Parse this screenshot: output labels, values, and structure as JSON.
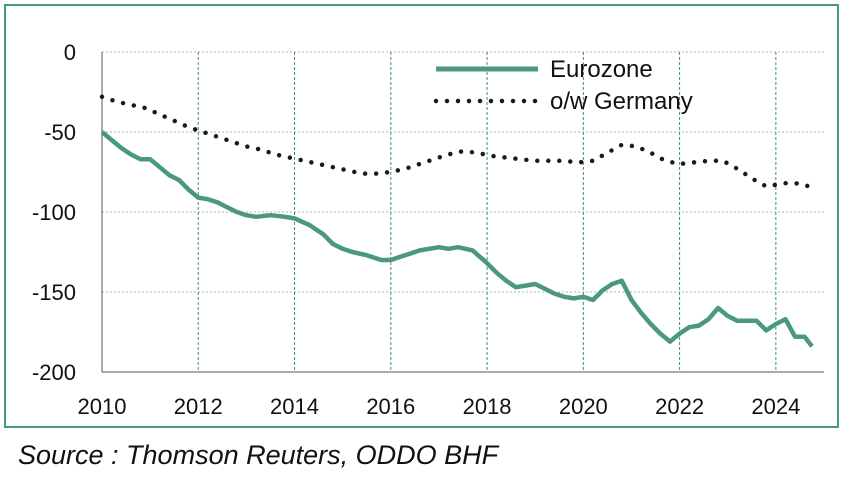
{
  "colors": {
    "frame": "#4a9a7a",
    "eurozone": "#4a9a7a",
    "germany": "#1a1a1a",
    "grid": "#b0b0b0",
    "vgrid": "#3f8f70"
  },
  "source": "Source : Thomson Reuters, ODDO BHF",
  "chart_data": {
    "type": "line",
    "title": "",
    "xlabel": "",
    "ylabel": "",
    "xlim": [
      2010,
      2025
    ],
    "ylim": [
      -200,
      0
    ],
    "yticks": [
      0,
      -50,
      -100,
      -150,
      -200
    ],
    "xticks": [
      2010,
      2012,
      2014,
      2016,
      2018,
      2020,
      2022,
      2024
    ],
    "ytick_labels": [
      "0",
      "-50",
      "-100",
      "-150",
      "-200"
    ],
    "xtick_labels": [
      "2010",
      "2012",
      "2014",
      "2016",
      "2018",
      "2020",
      "2022",
      "2024"
    ],
    "grid": {
      "horizontal": true,
      "vertical": true
    },
    "legend_position": "top-right",
    "series": [
      {
        "name": "Eurozone",
        "style": "solid",
        "color": "#4a9a7a",
        "x": [
          2010.0,
          2010.2,
          2010.4,
          2010.6,
          2010.8,
          2011.0,
          2011.2,
          2011.4,
          2011.6,
          2011.8,
          2012.0,
          2012.2,
          2012.4,
          2012.6,
          2012.8,
          2013.0,
          2013.2,
          2013.5,
          2013.8,
          2014.0,
          2014.3,
          2014.6,
          2014.8,
          2015.0,
          2015.2,
          2015.5,
          2015.8,
          2016.0,
          2016.2,
          2016.4,
          2016.6,
          2016.8,
          2017.0,
          2017.2,
          2017.4,
          2017.7,
          2018.0,
          2018.2,
          2018.4,
          2018.6,
          2018.8,
          2019.0,
          2019.2,
          2019.4,
          2019.6,
          2019.8,
          2020.0,
          2020.2,
          2020.4,
          2020.6,
          2020.8,
          2021.0,
          2021.2,
          2021.4,
          2021.6,
          2021.8,
          2022.0,
          2022.2,
          2022.4,
          2022.6,
          2022.8,
          2023.0,
          2023.2,
          2023.4,
          2023.6,
          2023.8,
          2024.0,
          2024.2,
          2024.4,
          2024.6,
          2024.75
        ],
        "values": [
          -50,
          -55,
          -60,
          -64,
          -67,
          -67,
          -72,
          -77,
          -80,
          -86,
          -91,
          -92,
          -94,
          -97,
          -100,
          -102,
          -103,
          -102,
          -103,
          -104,
          -108,
          -114,
          -120,
          -123,
          -125,
          -127,
          -130,
          -130,
          -128,
          -126,
          -124,
          -123,
          -122,
          -123,
          -122,
          -124,
          -132,
          -138,
          -143,
          -147,
          -146,
          -145,
          -148,
          -151,
          -153,
          -154,
          -153,
          -155,
          -149,
          -145,
          -143,
          -155,
          -163,
          -170,
          -176,
          -181,
          -176,
          -172,
          -171,
          -167,
          -160,
          -165,
          -168,
          -168,
          -168,
          -174,
          -170,
          -167,
          -178,
          -178,
          -184
        ]
      },
      {
        "name": "o/w Germany",
        "style": "dotted",
        "color": "#1a1a1a",
        "x": [
          2010.0,
          2010.3,
          2010.6,
          2010.9,
          2011.2,
          2011.5,
          2011.8,
          2012.1,
          2012.4,
          2012.7,
          2013.0,
          2013.3,
          2013.6,
          2013.9,
          2014.2,
          2014.5,
          2014.8,
          2015.1,
          2015.4,
          2015.7,
          2016.0,
          2016.3,
          2016.6,
          2016.9,
          2017.2,
          2017.5,
          2017.8,
          2018.1,
          2018.4,
          2018.7,
          2019.0,
          2019.3,
          2019.6,
          2019.9,
          2020.2,
          2020.5,
          2020.8,
          2021.1,
          2021.4,
          2021.7,
          2022.0,
          2022.3,
          2022.6,
          2022.9,
          2023.2,
          2023.5,
          2023.8,
          2024.0,
          2024.2,
          2024.4,
          2024.6,
          2024.75
        ],
        "values": [
          -28,
          -31,
          -33,
          -35,
          -39,
          -43,
          -47,
          -50,
          -53,
          -56,
          -59,
          -61,
          -64,
          -66,
          -68,
          -70,
          -72,
          -74,
          -76,
          -76,
          -75,
          -73,
          -70,
          -67,
          -64,
          -62,
          -63,
          -65,
          -66,
          -67,
          -68,
          -68,
          -68,
          -69,
          -68,
          -63,
          -58,
          -59,
          -63,
          -68,
          -70,
          -69,
          -68,
          -68,
          -73,
          -79,
          -84,
          -83,
          -82,
          -82,
          -83,
          -85
        ]
      }
    ]
  }
}
